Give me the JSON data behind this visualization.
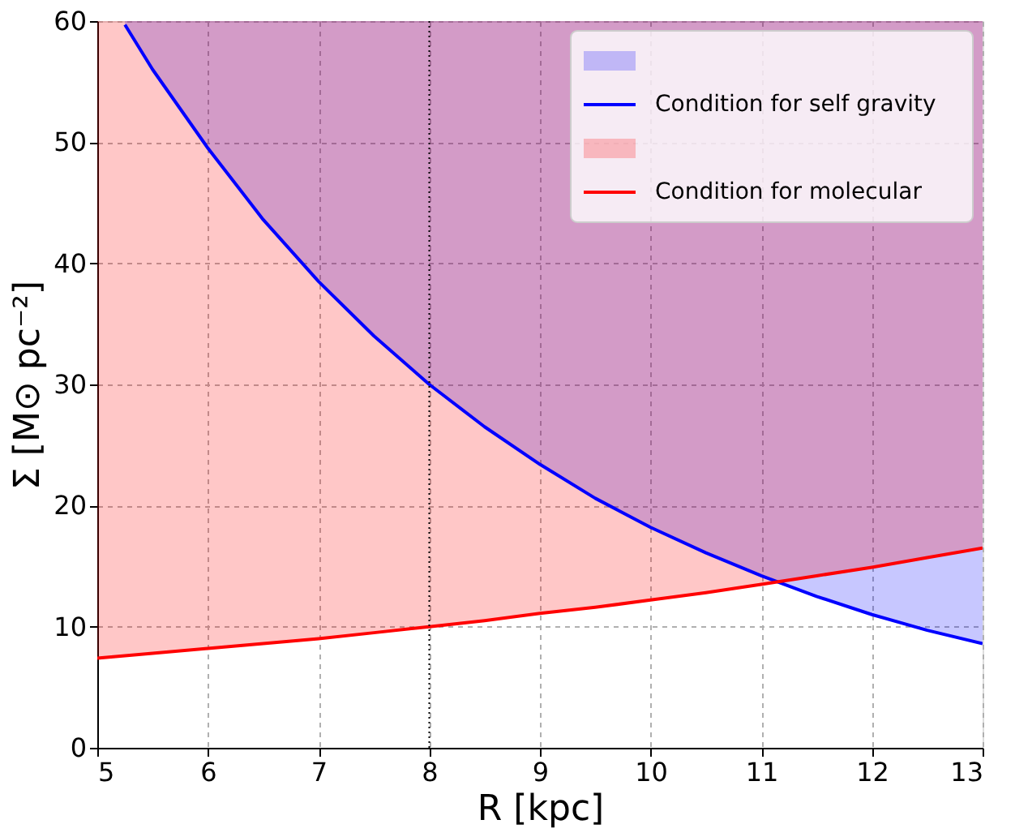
{
  "chart_data": {
    "type": "line",
    "xlabel": "R [kpc]",
    "ylabel": "Σ [M⊙ pc⁻²]",
    "xlim": [
      5,
      13
    ],
    "ylim": [
      0,
      60
    ],
    "xticks": [
      5,
      6,
      7,
      8,
      9,
      10,
      11,
      12,
      13
    ],
    "yticks": [
      0,
      10,
      20,
      30,
      40,
      50,
      60
    ],
    "grid": true,
    "legend": "top right",
    "line_style": "solid",
    "series": [
      {
        "name": "Condition for self gravity",
        "color": "#0000ff",
        "x": [
          5.25,
          5.5,
          6,
          6.5,
          7,
          7.5,
          8,
          8.5,
          9,
          9.5,
          10,
          10.5,
          11,
          11.5,
          12,
          12.5,
          13
        ],
        "values": [
          59.7,
          56.0,
          49.5,
          43.6,
          38.5,
          34.0,
          30.0,
          26.5,
          23.4,
          20.6,
          18.2,
          16.1,
          14.2,
          12.5,
          11.0,
          9.7,
          8.6
        ],
        "lower": [
          59.7,
          56.0,
          49.5,
          43.6,
          38.5,
          34.0,
          30.0,
          26.5,
          23.4,
          20.6,
          18.2,
          16.1,
          14.2,
          12.5,
          11.0,
          9.7,
          8.6
        ],
        "upper": [
          60,
          60,
          60,
          60,
          60,
          60,
          60,
          60,
          60,
          60,
          60,
          60,
          60,
          60,
          60,
          60,
          60
        ]
      },
      {
        "name": "Condition for molecular",
        "color": "#ff0000",
        "x": [
          5,
          5.5,
          6,
          6.5,
          7,
          7.5,
          8,
          8.5,
          9,
          9.5,
          10,
          10.5,
          11,
          11.5,
          12,
          12.5,
          13
        ],
        "values": [
          7.4,
          7.8,
          8.2,
          8.6,
          9.0,
          9.5,
          10.0,
          10.5,
          11.1,
          11.6,
          12.2,
          12.8,
          13.5,
          14.2,
          14.9,
          15.7,
          16.5
        ],
        "lower": [
          7.4,
          7.8,
          8.2,
          8.6,
          9.0,
          9.5,
          10.0,
          10.5,
          11.1,
          11.6,
          12.2,
          12.8,
          13.5,
          14.2,
          14.9,
          15.7,
          16.5
        ],
        "upper": [
          60,
          60,
          60,
          60,
          60,
          60,
          60,
          60,
          60,
          60,
          60,
          60,
          60,
          60,
          60,
          60,
          60
        ]
      }
    ],
    "ref_lines": [
      {
        "axis": "x",
        "value": 8,
        "color": "#000000",
        "line_style": "dotted"
      }
    ]
  }
}
